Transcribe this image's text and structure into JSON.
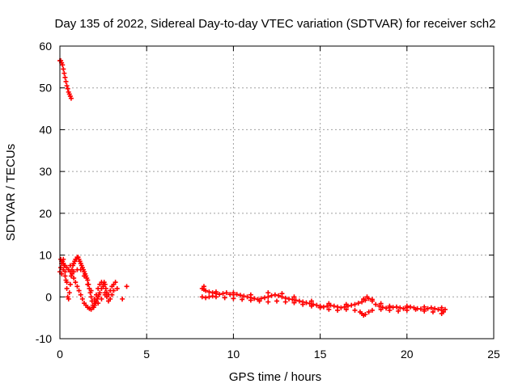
{
  "chart_data": {
    "type": "scatter",
    "title": "Day 135 of 2022, Sidereal Day-to-day VTEC variation (SDTVAR) for receiver sch2",
    "xlabel": "GPS time / hours",
    "ylabel": "SDTVAR / TECUs",
    "xlim": [
      0,
      25
    ],
    "ylim": [
      -10,
      60
    ],
    "xticks": [
      0,
      5,
      10,
      15,
      20,
      25
    ],
    "yticks": [
      -10,
      0,
      10,
      20,
      30,
      40,
      50,
      60
    ],
    "grid": true,
    "marker": "plus",
    "series": [
      {
        "name": "SDTVAR",
        "color": "#ff0000",
        "points": [
          [
            0.0,
            56.5
          ],
          [
            0.05,
            56.5
          ],
          [
            0.1,
            56.0
          ],
          [
            0.15,
            55.5
          ],
          [
            0.2,
            54.5
          ],
          [
            0.25,
            53.5
          ],
          [
            0.3,
            52.5
          ],
          [
            0.35,
            51.5
          ],
          [
            0.4,
            50.5
          ],
          [
            0.45,
            49.8
          ],
          [
            0.5,
            49.0
          ],
          [
            0.55,
            48.5
          ],
          [
            0.6,
            48.0
          ],
          [
            0.65,
            47.5
          ],
          [
            0.0,
            6.0
          ],
          [
            0.05,
            7.0
          ],
          [
            0.1,
            8.0
          ],
          [
            0.15,
            8.5
          ],
          [
            0.2,
            9.0
          ],
          [
            0.25,
            7.5
          ],
          [
            0.3,
            6.0
          ],
          [
            0.35,
            4.0
          ],
          [
            0.4,
            2.0
          ],
          [
            0.45,
            0.0
          ],
          [
            0.5,
            -0.5
          ],
          [
            0.55,
            1.0
          ],
          [
            0.6,
            3.0
          ],
          [
            0.65,
            5.0
          ],
          [
            0.7,
            6.5
          ],
          [
            0.75,
            7.5
          ],
          [
            0.8,
            8.0
          ],
          [
            0.85,
            8.5
          ],
          [
            0.9,
            9.0
          ],
          [
            0.95,
            9.0
          ],
          [
            1.0,
            9.5
          ],
          [
            1.05,
            9.5
          ],
          [
            1.1,
            9.0
          ],
          [
            1.15,
            8.5
          ],
          [
            1.2,
            8.0
          ],
          [
            1.25,
            7.5
          ],
          [
            1.3,
            7.0
          ],
          [
            1.35,
            6.5
          ],
          [
            1.4,
            6.0
          ],
          [
            1.45,
            5.5
          ],
          [
            1.5,
            5.0
          ],
          [
            1.55,
            4.5
          ],
          [
            1.6,
            4.0
          ],
          [
            1.65,
            3.0
          ],
          [
            1.7,
            2.0
          ],
          [
            1.75,
            1.0
          ],
          [
            1.8,
            0.0
          ],
          [
            1.85,
            -1.0
          ],
          [
            1.9,
            -2.0
          ],
          [
            1.95,
            -2.5
          ],
          [
            2.0,
            -2.0
          ],
          [
            2.05,
            -1.5
          ],
          [
            2.1,
            -1.0
          ],
          [
            2.15,
            -0.5
          ],
          [
            2.2,
            0.0
          ],
          [
            2.25,
            0.5
          ],
          [
            2.3,
            1.0
          ],
          [
            2.4,
            2.0
          ],
          [
            2.5,
            3.0
          ],
          [
            2.55,
            3.5
          ],
          [
            2.6,
            3.0
          ],
          [
            2.65,
            2.0
          ],
          [
            2.7,
            1.0
          ],
          [
            2.8,
            0.5
          ],
          [
            2.9,
            1.5
          ],
          [
            3.0,
            2.5
          ],
          [
            3.1,
            3.0
          ],
          [
            3.2,
            3.5
          ],
          [
            3.3,
            2.0
          ],
          [
            3.6,
            -0.5
          ],
          [
            3.85,
            2.5
          ],
          [
            0.05,
            9.0
          ],
          [
            0.1,
            8.5
          ],
          [
            0.2,
            8.0
          ],
          [
            0.3,
            7.5
          ],
          [
            0.4,
            7.0
          ],
          [
            0.5,
            6.5
          ],
          [
            0.6,
            6.0
          ],
          [
            0.7,
            5.5
          ],
          [
            0.8,
            4.5
          ],
          [
            0.9,
            3.5
          ],
          [
            1.0,
            2.5
          ],
          [
            1.1,
            1.5
          ],
          [
            1.2,
            0.5
          ],
          [
            1.3,
            -0.5
          ],
          [
            1.4,
            -1.5
          ],
          [
            1.5,
            -2.0
          ],
          [
            1.6,
            -2.5
          ],
          [
            1.7,
            -2.8
          ],
          [
            1.8,
            -3.0
          ],
          [
            1.9,
            -2.5
          ],
          [
            2.0,
            -1.0
          ],
          [
            2.1,
            0.5
          ],
          [
            2.2,
            2.0
          ],
          [
            2.3,
            3.0
          ],
          [
            2.4,
            3.5
          ],
          [
            2.5,
            2.5
          ],
          [
            2.6,
            1.0
          ],
          [
            2.7,
            0.0
          ],
          [
            2.8,
            -1.0
          ],
          [
            2.9,
            -0.5
          ],
          [
            3.0,
            0.5
          ],
          [
            3.1,
            1.5
          ],
          [
            0.1,
            5.5
          ],
          [
            0.2,
            6.5
          ],
          [
            0.3,
            5.0
          ],
          [
            0.4,
            3.5
          ],
          [
            0.6,
            7.5
          ],
          [
            0.8,
            6.0
          ],
          [
            1.0,
            6.5
          ],
          [
            1.2,
            6.5
          ],
          [
            1.4,
            5.0
          ],
          [
            1.6,
            3.0
          ],
          [
            1.8,
            1.5
          ],
          [
            2.0,
            -0.5
          ],
          [
            2.2,
            -1.5
          ],
          [
            2.4,
            -0.5
          ],
          [
            2.6,
            0.5
          ],
          [
            8.2,
            2.0
          ],
          [
            8.3,
            1.8
          ],
          [
            8.4,
            1.5
          ],
          [
            8.6,
            1.2
          ],
          [
            8.8,
            1.0
          ],
          [
            9.0,
            0.8
          ],
          [
            9.2,
            0.6
          ],
          [
            9.4,
            0.8
          ],
          [
            9.6,
            1.0
          ],
          [
            9.8,
            0.6
          ],
          [
            10.0,
            0.5
          ],
          [
            10.2,
            0.6
          ],
          [
            10.4,
            0.4
          ],
          [
            10.6,
            0.2
          ],
          [
            10.8,
            0.0
          ],
          [
            11.0,
            -0.2
          ],
          [
            11.2,
            -0.4
          ],
          [
            11.4,
            -0.6
          ],
          [
            11.6,
            -0.4
          ],
          [
            11.8,
            -0.2
          ],
          [
            12.0,
            0.0
          ],
          [
            12.2,
            0.3
          ],
          [
            12.4,
            0.5
          ],
          [
            12.6,
            0.3
          ],
          [
            12.8,
            0.0
          ],
          [
            13.0,
            -0.3
          ],
          [
            13.2,
            -0.5
          ],
          [
            13.4,
            -0.6
          ],
          [
            13.6,
            -0.8
          ],
          [
            13.8,
            -1.0
          ],
          [
            14.0,
            -1.2
          ],
          [
            14.2,
            -1.4
          ],
          [
            14.4,
            -1.6
          ],
          [
            14.6,
            -1.8
          ],
          [
            14.8,
            -2.0
          ],
          [
            15.0,
            -2.2
          ],
          [
            15.2,
            -2.4
          ],
          [
            15.4,
            -2.2
          ],
          [
            15.6,
            -2.0
          ],
          [
            15.8,
            -2.2
          ],
          [
            16.0,
            -2.4
          ],
          [
            16.2,
            -2.6
          ],
          [
            16.4,
            -2.4
          ],
          [
            16.6,
            -2.2
          ],
          [
            16.8,
            -2.0
          ],
          [
            17.0,
            -1.8
          ],
          [
            17.2,
            -1.5
          ],
          [
            17.4,
            -1.2
          ],
          [
            17.6,
            -0.8
          ],
          [
            17.8,
            -0.4
          ],
          [
            18.0,
            -1.0
          ],
          [
            18.2,
            -1.8
          ],
          [
            18.4,
            -2.2
          ],
          [
            18.6,
            -2.5
          ],
          [
            18.8,
            -2.7
          ],
          [
            19.0,
            -2.6
          ],
          [
            19.2,
            -2.5
          ],
          [
            19.4,
            -2.4
          ],
          [
            19.6,
            -2.6
          ],
          [
            19.8,
            -2.8
          ],
          [
            20.0,
            -2.6
          ],
          [
            20.2,
            -2.4
          ],
          [
            20.4,
            -2.6
          ],
          [
            20.6,
            -2.8
          ],
          [
            20.8,
            -2.9
          ],
          [
            21.0,
            -3.0
          ],
          [
            21.2,
            -2.8
          ],
          [
            21.4,
            -2.6
          ],
          [
            21.6,
            -2.8
          ],
          [
            21.8,
            -3.0
          ],
          [
            22.0,
            -3.2
          ],
          [
            22.2,
            -3.0
          ],
          [
            8.2,
            0.0
          ],
          [
            8.4,
            -0.2
          ],
          [
            8.6,
            0.0
          ],
          [
            8.8,
            0.2
          ],
          [
            9.0,
            0.0
          ],
          [
            9.5,
            -0.2
          ],
          [
            10.0,
            -0.4
          ],
          [
            10.5,
            -0.6
          ],
          [
            11.0,
            -0.8
          ],
          [
            11.5,
            -1.0
          ],
          [
            12.0,
            -1.2
          ],
          [
            12.5,
            -1.0
          ],
          [
            13.0,
            -1.2
          ],
          [
            13.5,
            -1.4
          ],
          [
            14.0,
            -1.8
          ],
          [
            14.5,
            -2.2
          ],
          [
            15.0,
            -2.6
          ],
          [
            15.5,
            -3.0
          ],
          [
            16.0,
            -3.2
          ],
          [
            16.5,
            -3.0
          ],
          [
            17.0,
            -3.2
          ],
          [
            17.3,
            -3.6
          ],
          [
            17.4,
            -4.0
          ],
          [
            17.5,
            -4.4
          ],
          [
            17.6,
            -4.2
          ],
          [
            17.8,
            -3.6
          ],
          [
            18.0,
            -3.2
          ],
          [
            18.5,
            -3.0
          ],
          [
            19.0,
            -3.2
          ],
          [
            19.5,
            -3.4
          ],
          [
            20.0,
            -3.2
          ],
          [
            20.5,
            -3.0
          ],
          [
            21.0,
            -3.4
          ],
          [
            21.5,
            -3.6
          ],
          [
            22.0,
            -4.0
          ],
          [
            22.1,
            -3.6
          ],
          [
            8.3,
            2.5
          ],
          [
            9.0,
            1.2
          ],
          [
            10.0,
            1.0
          ],
          [
            11.0,
            0.5
          ],
          [
            12.0,
            1.0
          ],
          [
            12.8,
            0.8
          ],
          [
            13.5,
            0.0
          ],
          [
            14.5,
            -1.0
          ],
          [
            15.5,
            -1.6
          ],
          [
            16.5,
            -1.8
          ],
          [
            17.5,
            -0.5
          ],
          [
            17.7,
            0.0
          ],
          [
            18.0,
            -0.6
          ],
          [
            18.5,
            -1.6
          ],
          [
            19.0,
            -2.2
          ],
          [
            20.0,
            -2.2
          ],
          [
            21.0,
            -2.4
          ],
          [
            22.0,
            -2.6
          ]
        ]
      }
    ]
  }
}
